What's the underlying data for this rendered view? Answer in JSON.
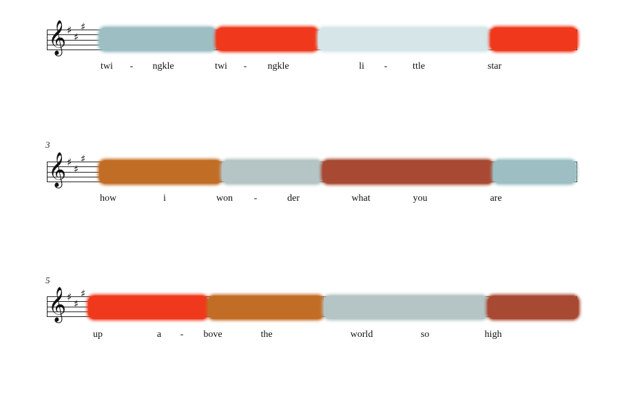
{
  "colors": {
    "light_blue": "#9dbfc4",
    "pale_blue": "#d6e6e8",
    "red_orange": "#f0391c",
    "orange_brown": "#c26d26",
    "grey_blue": "#b5c4c4",
    "rust": "#a84a33"
  },
  "systems": [
    {
      "measure_number": "",
      "clef_icon": "treble-clef-icon",
      "key_signature": "three-sharps",
      "segments": [
        {
          "color": "light_blue"
        },
        {
          "color": "red_orange"
        },
        {
          "color": "pale_blue"
        },
        {
          "color": "red_orange"
        }
      ],
      "lyrics": [
        "twi",
        "-",
        "ngkle",
        "twi",
        "-",
        "ngkle",
        "li",
        "-",
        "ttle",
        "star"
      ]
    },
    {
      "measure_number": "3",
      "clef_icon": "treble-clef-icon",
      "key_signature": "three-sharps",
      "segments": [
        {
          "color": "orange_brown"
        },
        {
          "color": "grey_blue"
        },
        {
          "color": "rust"
        },
        {
          "color": "light_blue"
        }
      ],
      "lyrics": [
        "how",
        "i",
        "won",
        "-",
        "der",
        "what",
        "you",
        "are"
      ]
    },
    {
      "measure_number": "5",
      "clef_icon": "treble-clef-icon",
      "key_signature": "three-sharps",
      "segments": [
        {
          "color": "red_orange"
        },
        {
          "color": "orange_brown"
        },
        {
          "color": "grey_blue"
        },
        {
          "color": "rust"
        }
      ],
      "lyrics": [
        "up",
        "a",
        "-",
        "bove",
        "the",
        "world",
        "so",
        "high"
      ]
    }
  ]
}
